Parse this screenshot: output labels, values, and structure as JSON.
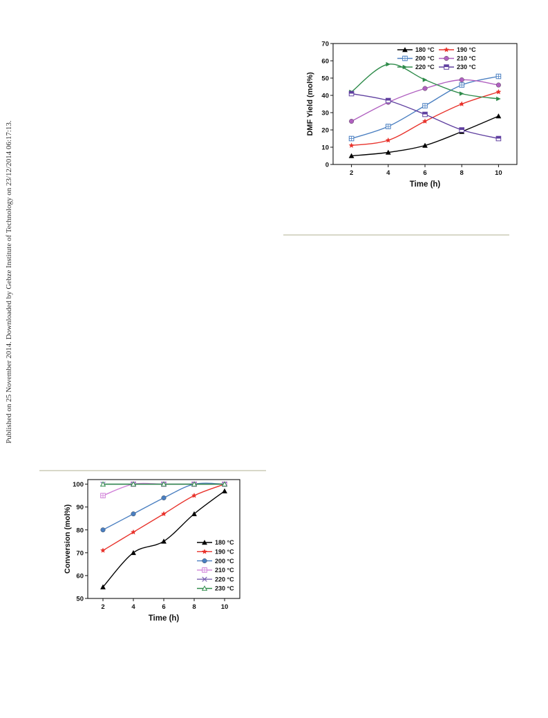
{
  "page": {
    "side_note": "Published on 25 November 2014. Downloaded by Gebze Institute of Technology on 23/12/2014 06:17:13."
  },
  "chart_data": [
    {
      "type": "line",
      "title": "",
      "xlabel": "Time (h)",
      "ylabel": "DMF Yield (mol%)",
      "x": [
        2,
        4,
        6,
        8,
        10
      ],
      "xlim": [
        1,
        11
      ],
      "ylim": [
        0,
        70
      ],
      "xticks": [
        2,
        4,
        6,
        8,
        10
      ],
      "yticks": [
        0,
        10,
        20,
        30,
        40,
        50,
        60,
        70
      ],
      "grid": false,
      "legend_position": "top",
      "legend_columns": 2,
      "series": [
        {
          "name": "180 °C",
          "values": [
            5,
            7,
            11,
            19,
            28
          ],
          "color": "#000000",
          "marker": "triangle"
        },
        {
          "name": "190 °C",
          "values": [
            11,
            14,
            25,
            35,
            42
          ],
          "color": "#e8322b",
          "marker": "star"
        },
        {
          "name": "200 °C",
          "values": [
            15,
            22,
            34,
            46,
            51
          ],
          "color": "#4a7fc1",
          "marker": "square-cross"
        },
        {
          "name": "210 °C",
          "values": [
            25,
            36,
            44,
            49,
            46
          ],
          "color": "#b060c0",
          "marker": "circle"
        },
        {
          "name": "220 °C",
          "values": [
            42,
            58,
            49,
            41,
            38
          ],
          "color": "#2e8b4a",
          "marker": "triangle-right"
        },
        {
          "name": "230 °C",
          "values": [
            41,
            37,
            29,
            20,
            15
          ],
          "color": "#6040a0",
          "marker": "square-half"
        }
      ]
    },
    {
      "type": "line",
      "title": "",
      "xlabel": "Time (h)",
      "ylabel": "Conversion (mol%)",
      "x": [
        2,
        4,
        6,
        8,
        10
      ],
      "xlim": [
        1,
        11
      ],
      "ylim": [
        50,
        102
      ],
      "xticks": [
        2,
        4,
        6,
        8,
        10
      ],
      "yticks": [
        50,
        60,
        70,
        80,
        90,
        100
      ],
      "grid": false,
      "legend_position": "bottom-right",
      "legend_columns": 1,
      "series": [
        {
          "name": "180 °C",
          "values": [
            55,
            70,
            75,
            87,
            97
          ],
          "color": "#000000",
          "marker": "triangle"
        },
        {
          "name": "190 °C",
          "values": [
            71,
            79,
            87,
            95,
            100
          ],
          "color": "#e8322b",
          "marker": "star"
        },
        {
          "name": "200 °C",
          "values": [
            80,
            87,
            94,
            100,
            100
          ],
          "color": "#4a7fc1",
          "marker": "circle"
        },
        {
          "name": "210 °C",
          "values": [
            95,
            100,
            100,
            100,
            100
          ],
          "color": "#d080d8",
          "marker": "square-cross"
        },
        {
          "name": "220 °C",
          "values": [
            100,
            100,
            100,
            100,
            100
          ],
          "color": "#7a60b0",
          "marker": "x"
        },
        {
          "name": "230 °C",
          "values": [
            100,
            100,
            100,
            100,
            100
          ],
          "color": "#2e8b4a",
          "marker": "triangle-open"
        }
      ]
    }
  ]
}
